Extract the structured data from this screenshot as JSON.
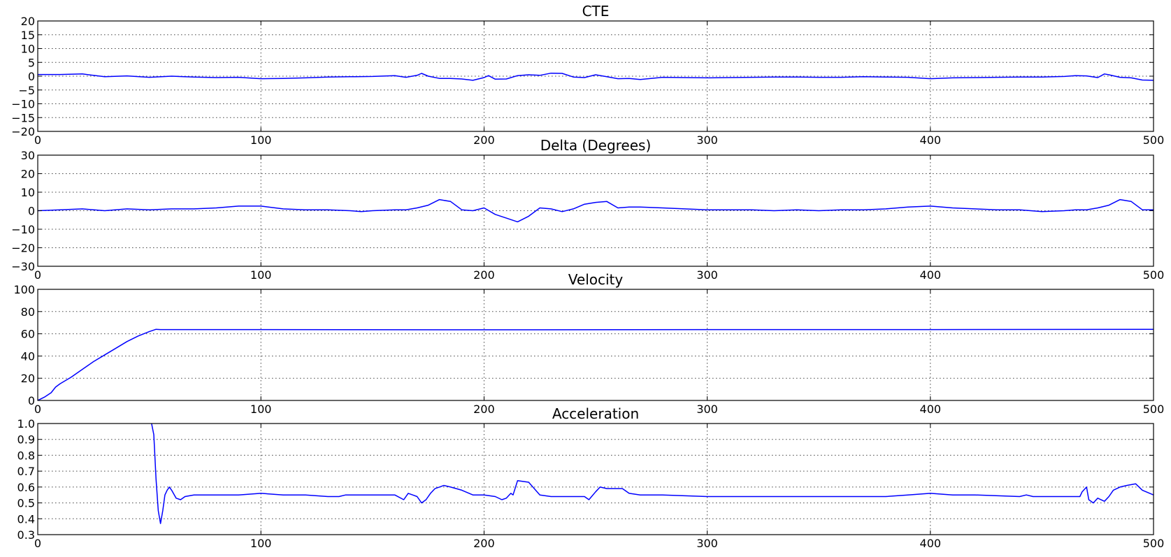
{
  "chart_data": [
    {
      "type": "line",
      "title": "CTE",
      "xlim": [
        0,
        500
      ],
      "ylim": [
        -20,
        20
      ],
      "xticks": [
        0,
        100,
        200,
        300,
        400,
        500
      ],
      "yticks": [
        -20,
        -15,
        -10,
        -5,
        0,
        5,
        10,
        15,
        20
      ],
      "grid": true,
      "series": [
        {
          "color": "#0000ff",
          "x": [
            0,
            10,
            20,
            30,
            40,
            50,
            60,
            70,
            80,
            90,
            100,
            110,
            120,
            130,
            140,
            150,
            160,
            165,
            170,
            172,
            175,
            180,
            185,
            190,
            195,
            200,
            202,
            205,
            210,
            215,
            220,
            225,
            230,
            235,
            240,
            245,
            250,
            255,
            260,
            265,
            270,
            280,
            290,
            300,
            310,
            320,
            330,
            340,
            350,
            360,
            370,
            380,
            390,
            400,
            410,
            420,
            430,
            440,
            450,
            460,
            465,
            470,
            475,
            478,
            480,
            485,
            490,
            495,
            500
          ],
          "y": [
            0.6,
            0.6,
            0.8,
            -0.2,
            0.1,
            -0.4,
            0.0,
            -0.3,
            -0.5,
            -0.4,
            -0.9,
            -0.8,
            -0.6,
            -0.3,
            -0.2,
            -0.1,
            0.2,
            -0.4,
            0.3,
            1.0,
            0.0,
            -0.8,
            -0.8,
            -1.0,
            -1.5,
            -0.5,
            0.2,
            -1.1,
            -1.0,
            0.2,
            0.5,
            0.3,
            1.1,
            1.0,
            -0.3,
            -0.5,
            0.5,
            -0.2,
            -0.9,
            -0.8,
            -1.2,
            -0.4,
            -0.5,
            -0.6,
            -0.5,
            -0.4,
            -0.3,
            -0.3,
            -0.4,
            -0.4,
            -0.2,
            -0.3,
            -0.4,
            -0.9,
            -0.6,
            -0.5,
            -0.4,
            -0.3,
            -0.3,
            -0.1,
            0.2,
            0.1,
            -0.5,
            0.8,
            0.5,
            -0.4,
            -0.6,
            -1.4,
            -1.5
          ]
        }
      ]
    },
    {
      "type": "line",
      "title": "Delta (Degrees)",
      "xlim": [
        0,
        500
      ],
      "ylim": [
        -30,
        30
      ],
      "xticks": [
        0,
        100,
        200,
        300,
        400,
        500
      ],
      "yticks": [
        -30,
        -20,
        -10,
        0,
        10,
        20,
        30
      ],
      "grid": true,
      "series": [
        {
          "color": "#0000ff",
          "x": [
            0,
            10,
            20,
            30,
            40,
            50,
            60,
            70,
            80,
            90,
            95,
            100,
            110,
            120,
            130,
            140,
            145,
            150,
            160,
            165,
            170,
            175,
            180,
            185,
            190,
            195,
            200,
            205,
            210,
            215,
            220,
            225,
            230,
            235,
            240,
            245,
            250,
            255,
            260,
            265,
            270,
            280,
            290,
            300,
            310,
            320,
            330,
            340,
            350,
            360,
            370,
            380,
            390,
            400,
            410,
            420,
            430,
            440,
            450,
            460,
            465,
            470,
            475,
            480,
            485,
            490,
            495,
            500
          ],
          "y": [
            0,
            0.5,
            1.0,
            0.0,
            1.0,
            0.5,
            1.0,
            1.0,
            1.5,
            2.5,
            2.5,
            2.5,
            1.0,
            0.5,
            0.5,
            0.0,
            -0.5,
            0.0,
            0.5,
            0.5,
            1.5,
            3.0,
            6.0,
            5.0,
            0.5,
            0.0,
            1.5,
            -2.0,
            -4.0,
            -6.0,
            -3.0,
            1.5,
            1.0,
            -0.5,
            1.0,
            3.5,
            4.5,
            5.0,
            1.5,
            2.0,
            2.0,
            1.5,
            1.0,
            0.5,
            0.5,
            0.5,
            0.0,
            0.5,
            0.0,
            0.5,
            0.5,
            1.0,
            2.0,
            2.5,
            1.5,
            1.0,
            0.5,
            0.5,
            -0.5,
            0.0,
            0.5,
            0.5,
            1.5,
            3.0,
            6.0,
            5.0,
            0.5,
            0.5
          ]
        }
      ]
    },
    {
      "type": "line",
      "title": "Velocity",
      "xlim": [
        0,
        500
      ],
      "ylim": [
        0,
        100
      ],
      "xticks": [
        0,
        100,
        200,
        300,
        400,
        500
      ],
      "yticks": [
        0,
        20,
        40,
        60,
        80,
        100
      ],
      "grid": true,
      "series": [
        {
          "color": "#0000ff",
          "x": [
            0,
            3,
            6,
            8,
            10,
            15,
            20,
            25,
            30,
            35,
            40,
            45,
            50,
            53,
            55,
            60,
            100,
            200,
            300,
            400,
            500
          ],
          "y": [
            0,
            3,
            7,
            12,
            15,
            21,
            28,
            35,
            41,
            47,
            53,
            58,
            62,
            64,
            63.8,
            63.8,
            63.8,
            63.6,
            63.8,
            63.8,
            64.0
          ]
        }
      ]
    },
    {
      "type": "line",
      "title": "Acceleration",
      "xlim": [
        0,
        500
      ],
      "ylim": [
        0.3,
        1.0
      ],
      "xticks": [
        0,
        100,
        200,
        300,
        400,
        500
      ],
      "yticks": [
        0.3,
        0.4,
        0.5,
        0.6,
        0.7,
        0.8,
        0.9,
        1.0
      ],
      "grid": true,
      "series": [
        {
          "color": "#0000ff",
          "x": [
            51,
            52,
            53,
            54,
            55,
            56,
            57,
            58,
            59,
            60,
            62,
            64,
            66,
            70,
            80,
            90,
            100,
            110,
            120,
            130,
            135,
            138,
            140,
            150,
            160,
            164,
            166,
            168,
            170,
            172,
            174,
            176,
            178,
            180,
            182,
            185,
            190,
            195,
            200,
            205,
            208,
            210,
            212,
            213,
            215,
            220,
            225,
            230,
            240,
            245,
            247,
            250,
            252,
            255,
            258,
            262,
            265,
            270,
            280,
            300,
            350,
            380,
            390,
            400,
            410,
            420,
            440,
            443,
            446,
            460,
            467,
            468,
            470,
            471,
            473,
            475,
            478,
            480,
            482,
            485,
            488,
            492,
            495,
            500
          ],
          "y": [
            1.0,
            0.93,
            0.65,
            0.45,
            0.37,
            0.45,
            0.55,
            0.58,
            0.6,
            0.58,
            0.53,
            0.52,
            0.54,
            0.55,
            0.55,
            0.55,
            0.56,
            0.55,
            0.55,
            0.54,
            0.54,
            0.55,
            0.55,
            0.55,
            0.55,
            0.52,
            0.56,
            0.55,
            0.54,
            0.5,
            0.52,
            0.56,
            0.59,
            0.6,
            0.61,
            0.6,
            0.58,
            0.55,
            0.55,
            0.54,
            0.52,
            0.53,
            0.56,
            0.55,
            0.64,
            0.63,
            0.55,
            0.54,
            0.54,
            0.54,
            0.52,
            0.57,
            0.6,
            0.59,
            0.59,
            0.59,
            0.56,
            0.55,
            0.55,
            0.54,
            0.54,
            0.54,
            0.55,
            0.56,
            0.55,
            0.55,
            0.54,
            0.55,
            0.54,
            0.54,
            0.54,
            0.57,
            0.6,
            0.52,
            0.5,
            0.53,
            0.51,
            0.54,
            0.58,
            0.6,
            0.61,
            0.62,
            0.58,
            0.55
          ]
        }
      ]
    }
  ]
}
